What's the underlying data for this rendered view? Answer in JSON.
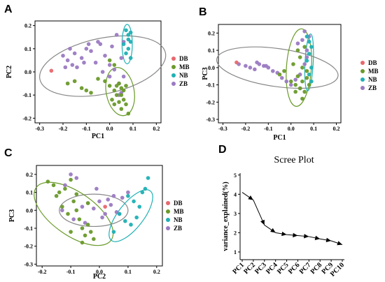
{
  "colors": {
    "DB": "#e8686e",
    "MB": "#6a9a2a",
    "NB": "#1fb0b4",
    "ZB": "#9b7ac2",
    "grey": "#888888"
  },
  "chart_data": [
    {
      "panel": "A",
      "type": "scatter",
      "xlabel": "PC1",
      "ylabel": "PC2",
      "xlim": [
        -0.32,
        0.22
      ],
      "ylim": [
        -0.22,
        0.22
      ],
      "xticks": [
        -0.3,
        -0.2,
        -0.1,
        0.0,
        0.1,
        0.2
      ],
      "yticks": [
        -0.2,
        -0.1,
        0.0,
        0.1,
        0.2
      ],
      "legend": [
        "DB",
        "MB",
        "NB",
        "ZB"
      ],
      "ellipses": [
        {
          "group": "ZB",
          "cx": -0.03,
          "cy": 0.025,
          "rx": 0.275,
          "ry": 0.12,
          "rot": 12
        },
        {
          "group": "MB",
          "cx": 0.045,
          "cy": -0.085,
          "rx": 0.06,
          "ry": 0.105,
          "rot": 10
        },
        {
          "group": "NB",
          "cx": 0.075,
          "cy": 0.12,
          "rx": 0.022,
          "ry": 0.085,
          "rot": 0
        }
      ],
      "series": [
        {
          "name": "DB",
          "x": [
            -0.25
          ],
          "y": [
            0.005
          ]
        },
        {
          "name": "MB",
          "x": [
            -0.18,
            -0.15,
            -0.1,
            -0.05,
            -0.02,
            0.0,
            0.01,
            0.02,
            0.02,
            0.03,
            0.03,
            0.04,
            0.04,
            0.05,
            0.05,
            0.05,
            0.06,
            0.06,
            0.07,
            0.07,
            0.08,
            0.02,
            0.0,
            -0.12,
            -0.08
          ],
          "y": [
            -0.05,
            -0.04,
            -0.08,
            -0.03,
            -0.04,
            -0.06,
            -0.12,
            -0.08,
            -0.14,
            -0.06,
            -0.1,
            -0.05,
            -0.13,
            -0.07,
            -0.1,
            -0.16,
            -0.08,
            -0.12,
            -0.06,
            -0.14,
            -0.18,
            0.03,
            0.05,
            -0.07,
            -0.09
          ]
        },
        {
          "name": "NB",
          "x": [
            0.07,
            0.08,
            0.09,
            0.08,
            0.07,
            0.09,
            0.08,
            0.06,
            0.09
          ],
          "y": [
            0.18,
            0.16,
            0.13,
            0.1,
            0.08,
            0.06,
            0.14,
            0.12,
            0.17
          ]
        },
        {
          "name": "ZB",
          "x": [
            -0.2,
            -0.18,
            -0.16,
            -0.15,
            -0.14,
            -0.12,
            -0.1,
            -0.08,
            -0.06,
            -0.04,
            -0.02,
            0.0,
            0.02,
            0.04,
            0.05,
            0.06,
            0.03,
            -0.03,
            -0.17,
            -0.19,
            -0.11,
            -0.05,
            0.01,
            0.05,
            0.06,
            0.04,
            0.0,
            -0.09
          ],
          "y": [
            0.07,
            0.05,
            0.03,
            0.08,
            0.02,
            0.06,
            0.1,
            0.09,
            0.04,
            0.12,
            0.07,
            0.03,
            0.01,
            -0.05,
            -0.09,
            0.13,
            0.16,
            0.0,
            0.1,
            0.02,
            0.04,
            0.13,
            0.11,
            0.06,
            -0.02,
            -0.1,
            -0.02,
            0.12
          ]
        }
      ]
    },
    {
      "panel": "B",
      "type": "scatter",
      "xlabel": "PC1",
      "ylabel": "PC3",
      "xlim": [
        -0.32,
        0.22
      ],
      "ylim": [
        -0.32,
        0.25
      ],
      "xticks": [
        -0.3,
        -0.2,
        -0.1,
        0.0,
        0.1,
        0.2
      ],
      "yticks": [
        -0.3,
        -0.2,
        -0.1,
        0.0,
        0.1,
        0.2
      ],
      "legend": [
        "DB",
        "MB",
        "NB",
        "ZB"
      ],
      "ellipses": [
        {
          "group": "ZB",
          "cx": -0.06,
          "cy": 0.0,
          "rx": 0.27,
          "ry": 0.11,
          "rot": -8
        },
        {
          "group": "MB",
          "cx": 0.035,
          "cy": 0.0,
          "rx": 0.055,
          "ry": 0.225,
          "rot": -4
        },
        {
          "group": "NB",
          "cx": 0.08,
          "cy": 0.03,
          "rx": 0.018,
          "ry": 0.165,
          "rot": -3
        }
      ],
      "series": [
        {
          "name": "DB",
          "x": [
            -0.24
          ],
          "y": [
            0.03
          ]
        },
        {
          "name": "MB",
          "x": [
            -0.05,
            0.0,
            0.02,
            0.03,
            0.04,
            0.05,
            0.06,
            0.07,
            0.07,
            0.05,
            0.04,
            0.03,
            0.02,
            0.06,
            0.08,
            0.01,
            -0.03,
            0.05
          ],
          "y": [
            -0.04,
            -0.08,
            -0.1,
            -0.05,
            -0.12,
            -0.08,
            -0.14,
            -0.06,
            -0.02,
            0.0,
            0.06,
            0.1,
            -0.14,
            0.12,
            -0.1,
            0.02,
            -0.02,
            -0.18
          ]
        },
        {
          "name": "NB",
          "x": [
            0.08,
            0.09,
            0.08,
            0.07,
            0.09,
            0.08,
            0.09,
            0.07
          ],
          "y": [
            0.15,
            0.12,
            0.08,
            0.04,
            0.0,
            -0.04,
            -0.08,
            0.18
          ]
        },
        {
          "name": "ZB",
          "x": [
            -0.23,
            -0.2,
            -0.18,
            -0.16,
            -0.14,
            -0.12,
            -0.1,
            -0.08,
            -0.06,
            -0.04,
            -0.02,
            0.0,
            0.02,
            0.04,
            0.06,
            0.07,
            0.08,
            0.05,
            0.03,
            -0.11,
            -0.15,
            0.06,
            0.07,
            0.04
          ],
          "y": [
            0.02,
            0.01,
            0.0,
            -0.01,
            0.02,
            0.01,
            0.0,
            -0.02,
            -0.03,
            -0.06,
            -0.08,
            -0.1,
            -0.07,
            -0.04,
            0.02,
            0.1,
            0.18,
            0.16,
            0.14,
            0.01,
            0.03,
            0.21,
            0.06,
            -0.12
          ]
        }
      ]
    },
    {
      "panel": "C",
      "type": "scatter",
      "xlabel": "PC2",
      "ylabel": "PC3",
      "xlim": [
        -0.22,
        0.22
      ],
      "ylim": [
        -0.31,
        0.25
      ],
      "xticks": [
        -0.2,
        -0.1,
        0.0,
        0.1,
        0.2
      ],
      "yticks": [
        -0.3,
        -0.2,
        -0.1,
        0.0,
        0.1,
        0.2
      ],
      "legend": [
        "DB",
        "MB",
        "NB",
        "ZB"
      ],
      "ellipses": [
        {
          "group": "ZB",
          "cx": -0.02,
          "cy": 0.0,
          "rx": 0.12,
          "ry": 0.09,
          "rot": 0
        },
        {
          "group": "MB",
          "cx": -0.09,
          "cy": -0.02,
          "rx": 0.16,
          "ry": 0.12,
          "rot": -35
        },
        {
          "group": "NB",
          "cx": 0.11,
          "cy": -0.03,
          "rx": 0.11,
          "ry": 0.07,
          "rot": 52
        }
      ],
      "series": [
        {
          "name": "DB",
          "x": [
            0.02
          ],
          "y": [
            0.02
          ]
        },
        {
          "name": "MB",
          "x": [
            -0.18,
            -0.16,
            -0.14,
            -0.12,
            -0.1,
            -0.09,
            -0.08,
            -0.07,
            -0.06,
            -0.05,
            -0.04,
            -0.03,
            -0.02,
            -0.11,
            -0.13,
            -0.15,
            -0.06,
            -0.1,
            -0.08,
            -0.04
          ],
          "y": [
            0.16,
            0.14,
            0.1,
            0.12,
            0.17,
            0.05,
            0.0,
            -0.05,
            -0.1,
            -0.14,
            -0.08,
            -0.12,
            -0.16,
            -0.02,
            0.02,
            0.08,
            -0.18,
            -0.12,
            0.09,
            0.04
          ]
        },
        {
          "name": "NB",
          "x": [
            0.1,
            0.12,
            0.14,
            0.16,
            0.13,
            0.11,
            0.09,
            0.07,
            0.05,
            0.15,
            0.17
          ],
          "y": [
            0.08,
            0.05,
            0.02,
            0.12,
            -0.04,
            -0.08,
            -0.06,
            -0.02,
            -0.12,
            0.1,
            0.18
          ]
        },
        {
          "name": "ZB",
          "x": [
            -0.12,
            -0.1,
            -0.08,
            -0.06,
            -0.04,
            -0.02,
            0.0,
            0.02,
            0.04,
            0.06,
            0.08,
            0.1,
            -0.05,
            -0.09,
            0.03,
            0.05,
            0.07,
            -0.01,
            -0.13,
            0.01
          ],
          "y": [
            0.14,
            0.2,
            0.18,
            0.02,
            0.04,
            0.01,
            0.05,
            -0.02,
            0.03,
            -0.01,
            0.07,
            0.1,
            -0.07,
            -0.05,
            0.06,
            0.08,
            -0.02,
            0.12,
            0.0,
            -0.04
          ]
        }
      ]
    },
    {
      "panel": "D",
      "type": "line",
      "title": "Scree Plot",
      "ylabel": "variance_explained(%)",
      "categories": [
        "PC1",
        "PC2",
        "PC3",
        "PC4",
        "PC5",
        "PC6",
        "PC7",
        "PC8",
        "PC9",
        "PC10"
      ],
      "values": [
        4.1,
        3.7,
        2.4,
        2.0,
        1.9,
        1.85,
        1.8,
        1.68,
        1.58,
        1.38
      ],
      "ylim": [
        0.6,
        5.1
      ],
      "yticks": [
        1,
        2,
        3,
        4,
        5
      ]
    }
  ]
}
